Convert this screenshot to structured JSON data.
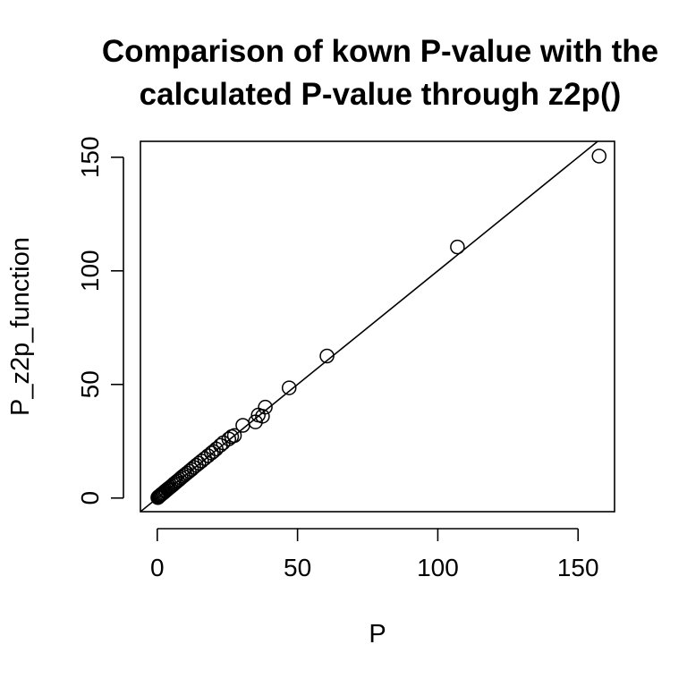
{
  "chart_data": {
    "type": "scatter",
    "title_lines": [
      "Comparison of kown P-value with the",
      "calculated P-value through z2p()"
    ],
    "xlabel": "P",
    "ylabel": "P_z2p_function",
    "xlim": [
      -6,
      163
    ],
    "ylim": [
      -6,
      157
    ],
    "x_ticks": [
      0,
      50,
      100,
      150
    ],
    "y_ticks": [
      0,
      50,
      100,
      150
    ],
    "x_tick_labels": [
      "0",
      "50",
      "100",
      "150"
    ],
    "y_tick_labels": [
      "0",
      "50",
      "100",
      "150"
    ],
    "reference_line": {
      "intercept": 0,
      "slope": 1
    },
    "marker": "open-circle",
    "grid": false,
    "points": [
      {
        "x": 0.2,
        "y": 0.2
      },
      {
        "x": 0.4,
        "y": 0.5
      },
      {
        "x": 0.6,
        "y": 0.7
      },
      {
        "x": 0.9,
        "y": 1.0
      },
      {
        "x": 1.2,
        "y": 1.3
      },
      {
        "x": 1.5,
        "y": 1.7
      },
      {
        "x": 1.9,
        "y": 2.0
      },
      {
        "x": 2.3,
        "y": 2.4
      },
      {
        "x": 2.7,
        "y": 2.9
      },
      {
        "x": 3.1,
        "y": 3.3
      },
      {
        "x": 3.6,
        "y": 3.8
      },
      {
        "x": 4.0,
        "y": 4.2
      },
      {
        "x": 4.5,
        "y": 4.7
      },
      {
        "x": 5.0,
        "y": 5.2
      },
      {
        "x": 5.6,
        "y": 5.8
      },
      {
        "x": 6.1,
        "y": 6.4
      },
      {
        "x": 6.7,
        "y": 7.0
      },
      {
        "x": 7.3,
        "y": 7.6
      },
      {
        "x": 7.9,
        "y": 8.2
      },
      {
        "x": 8.5,
        "y": 8.9
      },
      {
        "x": 9.2,
        "y": 9.6
      },
      {
        "x": 9.9,
        "y": 10.3
      },
      {
        "x": 10.6,
        "y": 11.0
      },
      {
        "x": 11.4,
        "y": 11.8
      },
      {
        "x": 12.2,
        "y": 12.6
      },
      {
        "x": 13.0,
        "y": 13.5
      },
      {
        "x": 13.9,
        "y": 14.4
      },
      {
        "x": 14.8,
        "y": 15.3
      },
      {
        "x": 15.8,
        "y": 16.3
      },
      {
        "x": 16.9,
        "y": 17.4
      },
      {
        "x": 18.1,
        "y": 18.6
      },
      {
        "x": 19.3,
        "y": 19.8
      },
      {
        "x": 20.0,
        "y": 20.5
      },
      {
        "x": 21.0,
        "y": 21.6
      },
      {
        "x": 22.5,
        "y": 23.2
      },
      {
        "x": 23.5,
        "y": 24.3
      },
      {
        "x": 25.5,
        "y": 26.0
      },
      {
        "x": 26.5,
        "y": 27.0
      },
      {
        "x": 27.5,
        "y": 27.5
      },
      {
        "x": 30.5,
        "y": 32.0
      },
      {
        "x": 35.0,
        "y": 33.5
      },
      {
        "x": 36.0,
        "y": 36.5
      },
      {
        "x": 37.5,
        "y": 36.0
      },
      {
        "x": 38.5,
        "y": 40.0
      },
      {
        "x": 47.0,
        "y": 48.5
      },
      {
        "x": 60.5,
        "y": 62.5
      },
      {
        "x": 107.0,
        "y": 110.5
      },
      {
        "x": 157.5,
        "y": 150.5
      }
    ]
  }
}
